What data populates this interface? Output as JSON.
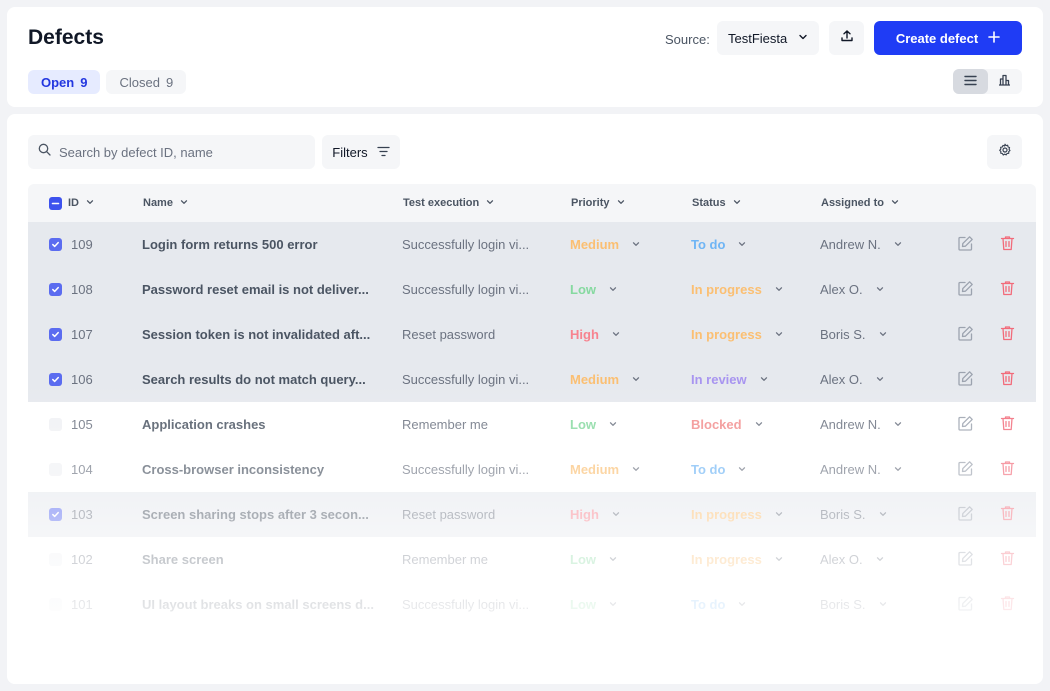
{
  "page": {
    "title": "Defects"
  },
  "tabs": [
    {
      "label": "Open",
      "count": "9"
    },
    {
      "label": "Closed",
      "count": "9"
    }
  ],
  "source": {
    "label": "Source:",
    "value": "TestFiesta"
  },
  "actions": {
    "create_label": "Create defect",
    "export_icon": "upload-icon",
    "create_icon": "plus-icon"
  },
  "view_toggle": {
    "options": [
      "list-view-icon",
      "chart-view-icon"
    ],
    "selected": "list-view-icon"
  },
  "search": {
    "placeholder": "Search by defect ID, name",
    "value": ""
  },
  "filters": {
    "label": "Filters"
  },
  "table": {
    "columns": [
      "ID",
      "Name",
      "Test execution",
      "Priority",
      "Status",
      "Assigned to"
    ],
    "rows": [
      {
        "id": "109",
        "name": "Login form returns 500 error",
        "execution": "Successfully login vi...",
        "priority": "Medium",
        "status": "To do",
        "assignee": "Andrew N.",
        "selected": true
      },
      {
        "id": "108",
        "name": "Password reset email is not deliver...",
        "execution": "Successfully login vi...",
        "priority": "Low",
        "status": "In progress",
        "assignee": "Alex O.",
        "selected": true
      },
      {
        "id": "107",
        "name": "Session token is not invalidated aft...",
        "execution": "Reset password",
        "priority": "High",
        "status": "In progress",
        "assignee": "Boris S.",
        "selected": true
      },
      {
        "id": "106",
        "name": "Search results do not match query...",
        "execution": "Successfully login vi...",
        "priority": "Medium",
        "status": "In review",
        "assignee": "Alex O.",
        "selected": true
      },
      {
        "id": "105",
        "name": "Application crashes",
        "execution": "Remember me",
        "priority": "Low",
        "status": "Blocked",
        "assignee": "Andrew N.",
        "selected": false
      },
      {
        "id": "104",
        "name": "Cross-browser inconsistency",
        "execution": "Successfully login vi...",
        "priority": "Medium",
        "status": "To do",
        "assignee": "Andrew N.",
        "selected": false
      },
      {
        "id": "103",
        "name": "Screen sharing stops after 3 secon...",
        "execution": "Reset password",
        "priority": "High",
        "status": "In progress",
        "assignee": "Boris S.",
        "selected": true
      },
      {
        "id": "102",
        "name": "Share screen",
        "execution": "Remember me",
        "priority": "Low",
        "status": "In progress",
        "assignee": "Alex O.",
        "selected": false
      },
      {
        "id": "101",
        "name": "UI layout breaks on small screens d...",
        "execution": "Successfully login vi...",
        "priority": "Low",
        "status": "To do",
        "assignee": "Boris S.",
        "selected": false
      }
    ]
  },
  "colors": {
    "priority": {
      "Medium": "#fbbf72",
      "Low": "#86d9a0",
      "High": "#f7838f"
    },
    "status": {
      "To do": "#6fb5f5",
      "In progress": "#fbbf72",
      "In review": "#a895f0",
      "Blocked": "#f28e8e"
    },
    "accent": "#1f3cf5",
    "edit_icon": "#9ca3af",
    "delete_icon": "#f26b7a"
  }
}
